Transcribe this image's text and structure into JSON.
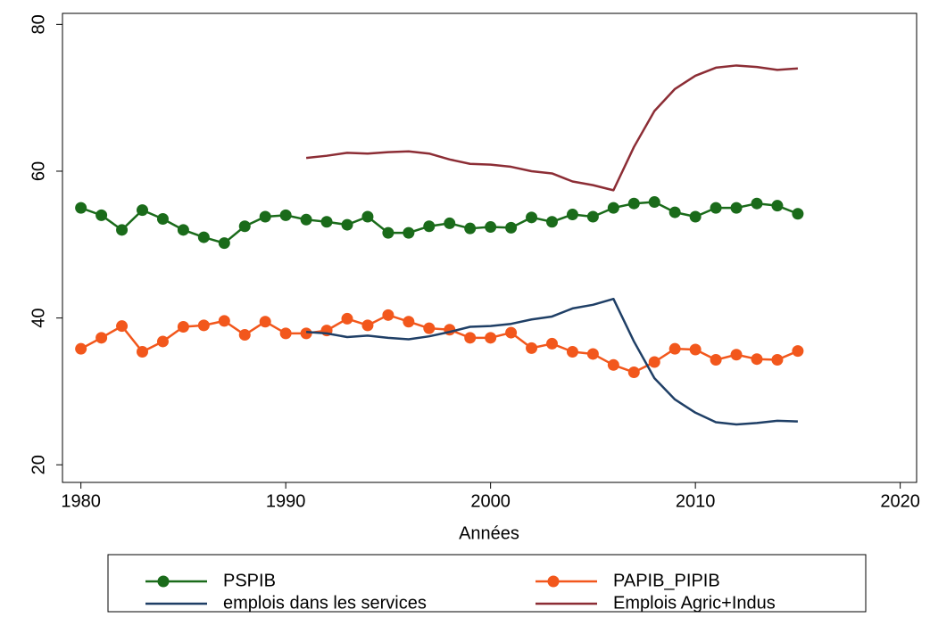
{
  "chart_data": {
    "type": "line",
    "x_label": "Années",
    "x": [
      1980,
      1981,
      1982,
      1983,
      1984,
      1985,
      1986,
      1987,
      1988,
      1989,
      1990,
      1991,
      1992,
      1993,
      1994,
      1995,
      1996,
      1997,
      1998,
      1999,
      2000,
      2001,
      2002,
      2003,
      2004,
      2005,
      2006,
      2007,
      2008,
      2009,
      2010,
      2011,
      2012,
      2013,
      2014,
      2015
    ],
    "xlim": [
      1979.1,
      2020.8
    ],
    "xticks": [
      1980,
      1990,
      2000,
      2010,
      2020
    ],
    "ylim": [
      17.6,
      81.5
    ],
    "yticks": [
      20,
      40,
      60,
      80
    ],
    "series": [
      {
        "name": "PSPIB",
        "color": "#1a6b1a",
        "markers": true,
        "values": [
          55,
          54,
          52,
          54.7,
          53.5,
          52,
          51,
          50.2,
          52.5,
          53.8,
          54,
          53.4,
          53.1,
          52.7,
          53.8,
          51.6,
          51.6,
          52.5,
          52.9,
          52.2,
          52.4,
          52.3,
          53.7,
          53.1,
          54.1,
          53.8,
          55,
          55.6,
          55.8,
          54.4,
          53.8,
          55,
          55,
          55.6,
          55.3,
          54.2
        ]
      },
      {
        "name": "PAPIB_PIPIB",
        "color": "#f2571c",
        "markers": true,
        "values": [
          35.8,
          37.3,
          38.9,
          35.4,
          36.8,
          38.8,
          39,
          39.6,
          37.7,
          39.5,
          37.9,
          37.9,
          38.3,
          39.9,
          39,
          40.4,
          39.5,
          38.6,
          38.4,
          37.3,
          37.3,
          38,
          35.9,
          36.5,
          35.4,
          35.1,
          33.6,
          32.6,
          34,
          35.8,
          35.7,
          34.3,
          35,
          34.4,
          34.3,
          35.5
        ]
      },
      {
        "name": "emplois dans les services",
        "color": "#1f3f66",
        "markers": false,
        "values": [
          null,
          null,
          null,
          null,
          null,
          null,
          null,
          null,
          null,
          null,
          null,
          38.1,
          37.9,
          37.4,
          37.6,
          37.3,
          37.1,
          37.5,
          38.1,
          38.8,
          38.9,
          39.2,
          39.8,
          40.2,
          41.3,
          41.8,
          42.6,
          36.8,
          31.8,
          28.9,
          27.1,
          25.8,
          25.5,
          25.7,
          26,
          25.9
        ]
      },
      {
        "name": "Emplois Agric+Indus",
        "color": "#8c2d35",
        "markers": false,
        "values": [
          null,
          null,
          null,
          null,
          null,
          null,
          null,
          null,
          null,
          null,
          null,
          61.8,
          62.1,
          62.5,
          62.4,
          62.6,
          62.7,
          62.4,
          61.6,
          61,
          60.9,
          60.6,
          60,
          59.7,
          58.6,
          58.1,
          57.4,
          63.3,
          68.2,
          71.2,
          73,
          74.1,
          74.4,
          74.2,
          73.8,
          74
        ]
      }
    ]
  }
}
